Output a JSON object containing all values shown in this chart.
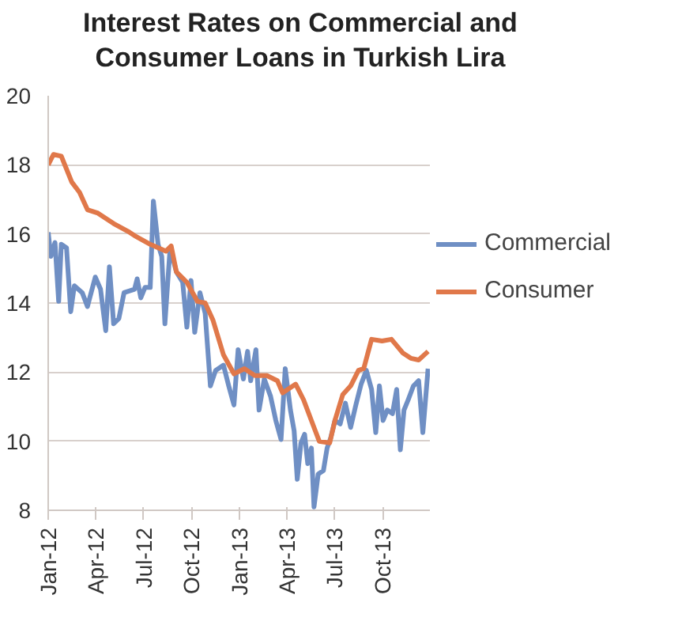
{
  "chart_data": {
    "type": "line",
    "title": "Interest Rates on Commercial and Consumer Loans in Turkish Lira",
    "ylim": [
      8,
      20
    ],
    "yticks": [
      8,
      10,
      12,
      14,
      16,
      18,
      20
    ],
    "xlim": [
      "2012-01-01",
      "2014-01-01"
    ],
    "xticks": [
      {
        "value": "2012-01-01",
        "label": "Jan-12"
      },
      {
        "value": "2012-04-01",
        "label": "Apr-12"
      },
      {
        "value": "2012-07-01",
        "label": "Jul-12"
      },
      {
        "value": "2012-10-01",
        "label": "Oct-12"
      },
      {
        "value": "2013-01-01",
        "label": "Jan-13"
      },
      {
        "value": "2013-04-01",
        "label": "Apr-13"
      },
      {
        "value": "2013-07-01",
        "label": "Jul-13"
      },
      {
        "value": "2013-10-01",
        "label": "Oct-13"
      }
    ],
    "grid": "y",
    "legend": "right",
    "marker": "none",
    "line_style": "solid",
    "series": [
      {
        "name": "Commercial",
        "color": "#6f8fc4",
        "x": [
          "2012-01-01",
          "2012-01-06",
          "2012-01-14",
          "2012-01-21",
          "2012-01-26",
          "2012-02-05",
          "2012-02-13",
          "2012-02-20",
          "2012-03-06",
          "2012-03-16",
          "2012-03-31",
          "2012-04-10",
          "2012-04-20",
          "2012-04-27",
          "2012-05-05",
          "2012-05-15",
          "2012-05-25",
          "2012-06-14",
          "2012-06-19",
          "2012-06-26",
          "2012-07-04",
          "2012-07-14",
          "2012-07-20",
          "2012-07-29",
          "2012-08-05",
          "2012-08-11",
          "2012-08-21",
          "2012-09-02",
          "2012-09-14",
          "2012-09-22",
          "2012-09-30",
          "2012-10-07",
          "2012-10-17",
          "2012-10-27",
          "2012-11-06",
          "2012-11-16",
          "2012-12-01",
          "2012-12-11",
          "2012-12-21",
          "2012-12-29",
          "2013-01-08",
          "2013-01-16",
          "2013-01-22",
          "2013-02-01",
          "2013-02-07",
          "2013-02-17",
          "2013-03-01",
          "2013-03-11",
          "2013-03-21",
          "2013-03-29",
          "2013-04-08",
          "2013-04-15",
          "2013-04-21",
          "2013-04-28",
          "2013-05-05",
          "2013-05-11",
          "2013-05-18",
          "2013-05-23",
          "2013-05-31",
          "2013-06-10",
          "2013-06-17",
          "2013-06-24",
          "2013-07-02",
          "2013-07-12",
          "2013-07-22",
          "2013-08-01",
          "2013-08-11",
          "2013-08-21",
          "2013-08-31",
          "2013-09-10",
          "2013-09-18",
          "2013-09-25",
          "2013-10-02",
          "2013-10-10",
          "2013-10-20",
          "2013-10-28",
          "2013-11-04",
          "2013-11-11",
          "2013-11-19",
          "2013-11-29",
          "2013-12-09",
          "2013-12-17",
          "2013-12-27"
        ],
        "values": [
          16.05,
          15.35,
          15.75,
          14.05,
          15.7,
          15.6,
          13.75,
          14.5,
          14.3,
          13.9,
          14.75,
          14.4,
          13.2,
          15.05,
          13.4,
          13.55,
          14.3,
          14.4,
          14.7,
          14.15,
          14.45,
          14.45,
          16.95,
          15.7,
          15.35,
          13.4,
          15.6,
          14.9,
          14.6,
          13.3,
          14.65,
          13.15,
          14.3,
          13.7,
          11.6,
          12.05,
          12.2,
          11.6,
          11.05,
          12.65,
          11.8,
          12.6,
          11.75,
          12.65,
          10.9,
          11.8,
          11.3,
          10.6,
          10.05,
          12.1,
          10.9,
          10.3,
          8.9,
          9.95,
          10.2,
          9.35,
          9.8,
          8.1,
          9.05,
          9.15,
          9.8,
          10.1,
          10.6,
          10.5,
          11.1,
          10.4,
          11.05,
          11.65,
          12.05,
          11.5,
          10.25,
          11.6,
          10.6,
          10.9,
          10.8,
          11.5,
          9.75,
          10.9,
          11.2,
          11.6,
          11.75,
          10.25,
          12.1
        ]
      },
      {
        "name": "Consumer",
        "color": "#e0784a",
        "x": [
          "2012-01-01",
          "2012-01-11",
          "2012-01-26",
          "2012-02-15",
          "2012-03-01",
          "2012-03-16",
          "2012-04-05",
          "2012-05-05",
          "2012-06-04",
          "2012-06-14",
          "2012-07-14",
          "2012-08-13",
          "2012-08-23",
          "2012-09-02",
          "2012-09-22",
          "2012-10-12",
          "2012-10-27",
          "2012-11-11",
          "2012-12-01",
          "2012-12-21",
          "2013-01-10",
          "2013-01-30",
          "2013-02-22",
          "2013-03-14",
          "2013-03-24",
          "2013-04-18",
          "2013-05-03",
          "2013-05-23",
          "2013-06-02",
          "2013-06-22",
          "2013-07-02",
          "2013-07-17",
          "2013-08-01",
          "2013-08-16",
          "2013-08-26",
          "2013-09-10",
          "2013-09-30",
          "2013-10-18",
          "2013-11-09",
          "2013-11-24",
          "2013-12-09",
          "2013-12-27"
        ],
        "values": [
          18.0,
          18.3,
          18.25,
          17.5,
          17.2,
          16.7,
          16.6,
          16.3,
          16.05,
          15.95,
          15.7,
          15.5,
          15.65,
          14.9,
          14.6,
          14.05,
          14.0,
          13.5,
          12.5,
          11.95,
          12.1,
          11.9,
          11.9,
          11.75,
          11.4,
          11.65,
          11.2,
          10.4,
          10.0,
          9.95,
          10.6,
          11.35,
          11.6,
          12.05,
          12.1,
          12.95,
          12.9,
          12.95,
          12.55,
          12.4,
          12.35,
          12.6
        ]
      }
    ]
  }
}
